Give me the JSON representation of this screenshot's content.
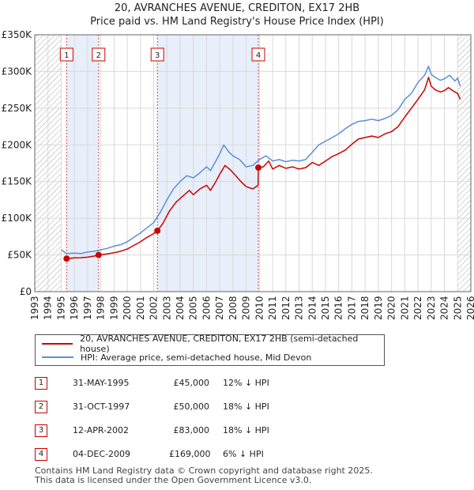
{
  "title": "20, AVRANCHES AVENUE, CREDITON, EX17 2HB",
  "subtitle": "Price paid vs. HM Land Registry's House Price Index (HPI)",
  "colors": {
    "property": "#cc0000",
    "hpi": "#5b8fd6",
    "shade": "#e8eefa",
    "hatch": "#999999"
  },
  "chart_data": {
    "type": "line",
    "x_axis": {
      "min": 1993,
      "max": 2026,
      "ticks": [
        "1993",
        "1994",
        "1995",
        "1996",
        "1997",
        "1998",
        "1999",
        "2000",
        "2001",
        "2002",
        "2003",
        "2004",
        "2005",
        "2006",
        "2007",
        "2008",
        "2009",
        "2010",
        "2011",
        "2012",
        "2013",
        "2014",
        "2015",
        "2016",
        "2017",
        "2018",
        "2019",
        "2020",
        "2021",
        "2022",
        "2023",
        "2024",
        "2025",
        "2026"
      ]
    },
    "y_axis": {
      "min": 0,
      "max": 350000,
      "ticks": [
        {
          "value": 0,
          "label": "£0"
        },
        {
          "value": 50000,
          "label": "£50K"
        },
        {
          "value": 100000,
          "label": "£100K"
        },
        {
          "value": 150000,
          "label": "£150K"
        },
        {
          "value": 200000,
          "label": "£200K"
        },
        {
          "value": 250000,
          "label": "£250K"
        },
        {
          "value": 300000,
          "label": "£300K"
        },
        {
          "value": 350000,
          "label": "£350K"
        }
      ]
    },
    "grid": true,
    "shaded_periods": [
      [
        1995.41,
        1997.83
      ],
      [
        2002.28,
        2009.92
      ]
    ],
    "hatched_periods": [
      [
        1993.0,
        1995.0
      ],
      [
        2025.0,
        2026.0
      ]
    ],
    "series": [
      {
        "name": "20, AVRANCHES AVENUE, CREDITON, EX17 2HB (semi-detached house)",
        "color": "#cc0000",
        "points": [
          [
            1995.41,
            45000
          ],
          [
            1996.0,
            46000
          ],
          [
            1996.5,
            46200
          ],
          [
            1997.0,
            47000
          ],
          [
            1997.5,
            48500
          ],
          [
            1997.83,
            50000
          ],
          [
            1998.5,
            51500
          ],
          [
            1999.0,
            53000
          ],
          [
            1999.5,
            55000
          ],
          [
            2000.0,
            58000
          ],
          [
            2000.5,
            63000
          ],
          [
            2001.0,
            68000
          ],
          [
            2001.5,
            74000
          ],
          [
            2002.0,
            79000
          ],
          [
            2002.28,
            83000
          ],
          [
            2002.7,
            93000
          ],
          [
            2003.2,
            110000
          ],
          [
            2003.7,
            122000
          ],
          [
            2004.2,
            130000
          ],
          [
            2004.7,
            138000
          ],
          [
            2005.0,
            132000
          ],
          [
            2005.5,
            140000
          ],
          [
            2006.0,
            145000
          ],
          [
            2006.3,
            138000
          ],
          [
            2006.7,
            150000
          ],
          [
            2007.0,
            160000
          ],
          [
            2007.4,
            172000
          ],
          [
            2007.8,
            166000
          ],
          [
            2008.2,
            158000
          ],
          [
            2008.6,
            150000
          ],
          [
            2009.0,
            143000
          ],
          [
            2009.5,
            140000
          ],
          [
            2009.9,
            145000
          ],
          [
            2009.92,
            169000
          ],
          [
            2010.3,
            170000
          ],
          [
            2010.7,
            178000
          ],
          [
            2011.0,
            167000
          ],
          [
            2011.5,
            172000
          ],
          [
            2012.0,
            168000
          ],
          [
            2012.5,
            170000
          ],
          [
            2013.0,
            167000
          ],
          [
            2013.5,
            169000
          ],
          [
            2014.0,
            176000
          ],
          [
            2014.5,
            172000
          ],
          [
            2015.0,
            178000
          ],
          [
            2015.5,
            184000
          ],
          [
            2016.0,
            188000
          ],
          [
            2016.5,
            193000
          ],
          [
            2017.0,
            201000
          ],
          [
            2017.5,
            208000
          ],
          [
            2018.0,
            210000
          ],
          [
            2018.5,
            212000
          ],
          [
            2019.0,
            210000
          ],
          [
            2019.5,
            215000
          ],
          [
            2020.0,
            218000
          ],
          [
            2020.5,
            225000
          ],
          [
            2021.0,
            238000
          ],
          [
            2021.5,
            250000
          ],
          [
            2022.0,
            262000
          ],
          [
            2022.5,
            275000
          ],
          [
            2022.8,
            292000
          ],
          [
            2023.0,
            280000
          ],
          [
            2023.3,
            275000
          ],
          [
            2023.7,
            272000
          ],
          [
            2024.0,
            274000
          ],
          [
            2024.3,
            278000
          ],
          [
            2024.7,
            273000
          ],
          [
            2025.0,
            270000
          ],
          [
            2025.2,
            262000
          ]
        ]
      },
      {
        "name": "HPI: Average price, semi-detached house, Mid Devon",
        "color": "#5b8fd6",
        "points": [
          [
            1995.0,
            57000
          ],
          [
            1995.4,
            52000
          ],
          [
            1996.0,
            52500
          ],
          [
            1996.5,
            52000
          ],
          [
            1997.0,
            54000
          ],
          [
            1997.5,
            55000
          ],
          [
            1998.0,
            57000
          ],
          [
            1998.5,
            59000
          ],
          [
            1999.0,
            62000
          ],
          [
            1999.5,
            64000
          ],
          [
            2000.0,
            68000
          ],
          [
            2000.5,
            74000
          ],
          [
            2001.0,
            80000
          ],
          [
            2001.5,
            87000
          ],
          [
            2002.0,
            94000
          ],
          [
            2002.5,
            108000
          ],
          [
            2003.0,
            125000
          ],
          [
            2003.5,
            140000
          ],
          [
            2004.0,
            150000
          ],
          [
            2004.5,
            158000
          ],
          [
            2005.0,
            155000
          ],
          [
            2005.5,
            162000
          ],
          [
            2006.0,
            170000
          ],
          [
            2006.3,
            165000
          ],
          [
            2006.7,
            178000
          ],
          [
            2007.0,
            188000
          ],
          [
            2007.3,
            200000
          ],
          [
            2007.7,
            190000
          ],
          [
            2008.0,
            185000
          ],
          [
            2008.5,
            180000
          ],
          [
            2009.0,
            170000
          ],
          [
            2009.5,
            172000
          ],
          [
            2010.0,
            180000
          ],
          [
            2010.5,
            185000
          ],
          [
            2011.0,
            178000
          ],
          [
            2011.5,
            180000
          ],
          [
            2012.0,
            177000
          ],
          [
            2012.5,
            179000
          ],
          [
            2013.0,
            178000
          ],
          [
            2013.5,
            180000
          ],
          [
            2014.0,
            190000
          ],
          [
            2014.5,
            200000
          ],
          [
            2015.0,
            205000
          ],
          [
            2015.5,
            210000
          ],
          [
            2016.0,
            215000
          ],
          [
            2016.5,
            222000
          ],
          [
            2017.0,
            228000
          ],
          [
            2017.5,
            232000
          ],
          [
            2018.0,
            233000
          ],
          [
            2018.5,
            235000
          ],
          [
            2019.0,
            233000
          ],
          [
            2019.5,
            236000
          ],
          [
            2020.0,
            240000
          ],
          [
            2020.5,
            248000
          ],
          [
            2021.0,
            262000
          ],
          [
            2021.5,
            270000
          ],
          [
            2022.0,
            285000
          ],
          [
            2022.5,
            295000
          ],
          [
            2022.8,
            307000
          ],
          [
            2023.0,
            296000
          ],
          [
            2023.3,
            292000
          ],
          [
            2023.7,
            288000
          ],
          [
            2024.0,
            290000
          ],
          [
            2024.4,
            295000
          ],
          [
            2024.8,
            287000
          ],
          [
            2025.0,
            291000
          ],
          [
            2025.2,
            280000
          ]
        ]
      }
    ],
    "sales": [
      {
        "num": "1",
        "x": 1995.41,
        "price": 45000,
        "date": "31-MAY-1995",
        "price_label": "£45,000",
        "hpi": "12% ↓ HPI"
      },
      {
        "num": "2",
        "x": 1997.83,
        "price": 50000,
        "date": "31-OCT-1997",
        "price_label": "£50,000",
        "hpi": "18% ↓ HPI"
      },
      {
        "num": "3",
        "x": 2002.28,
        "price": 83000,
        "date": "12-APR-2002",
        "price_label": "£83,000",
        "hpi": "18% ↓ HPI"
      },
      {
        "num": "4",
        "x": 2009.92,
        "price": 169000,
        "date": "04-DEC-2009",
        "price_label": "£169,000",
        "hpi": "6% ↓ HPI"
      }
    ]
  },
  "legend": {
    "property": "20, AVRANCHES AVENUE, CREDITON, EX17 2HB (semi-detached house)",
    "hpi": "HPI: Average price, semi-detached house, Mid Devon"
  },
  "footer": {
    "line1": "Contains HM Land Registry data © Crown copyright and database right 2025.",
    "line2": "This data is licensed under the Open Government Licence v3.0."
  }
}
